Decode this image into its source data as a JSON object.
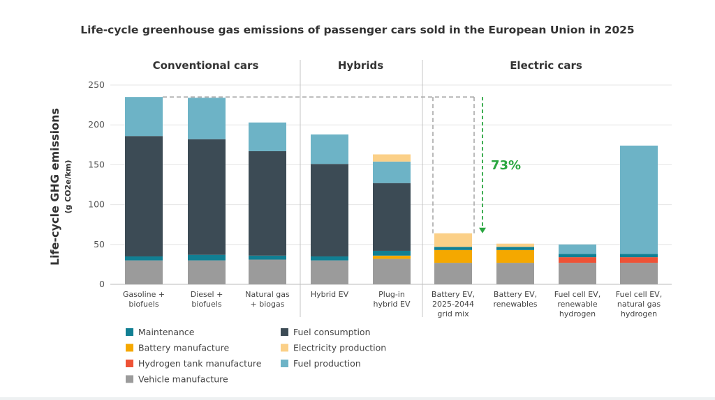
{
  "chart_data": {
    "type": "bar",
    "stacked": true,
    "title": "Life-cycle greenhouse gas emissions of passenger cars sold in the European Union in 2025",
    "ylabel": "Life-cycle GHG emissions",
    "yunit": "(g CO2e/km)",
    "ylim": [
      0,
      250
    ],
    "yticks": [
      0,
      50,
      100,
      150,
      200,
      250
    ],
    "grid": true,
    "legend_position": "bottom-left",
    "groups": [
      {
        "label": "Conventional cars",
        "categories": [
          0,
          1,
          2
        ]
      },
      {
        "label": "Hybrids",
        "categories": [
          3,
          4
        ]
      },
      {
        "label": "Electric cars",
        "categories": [
          5,
          6,
          7,
          8
        ]
      }
    ],
    "categories": [
      [
        "Gasoline +",
        "biofuels"
      ],
      [
        "Diesel +",
        "biofuels"
      ],
      [
        "Natural gas",
        "+ biogas"
      ],
      [
        "Hybrid EV"
      ],
      [
        "Plug-in",
        "hybrid EV"
      ],
      [
        "Battery EV,",
        "2025-2044",
        "grid mix"
      ],
      [
        "Battery EV,",
        "renewables"
      ],
      [
        "Fuel cell EV,",
        "renewable",
        "hydrogen"
      ],
      [
        "Fuel cell EV,",
        "natural gas",
        "hydrogen"
      ]
    ],
    "series": [
      {
        "name": "Vehicle manufacture",
        "color": "#9b9b9b",
        "values": [
          30,
          30,
          31,
          30,
          32,
          27,
          27,
          27,
          27
        ]
      },
      {
        "name": "Battery manufacture",
        "color": "#f5a800",
        "values": [
          0,
          0,
          0,
          0,
          4,
          16,
          16,
          0,
          0
        ]
      },
      {
        "name": "Hydrogen tank manufacture",
        "color": "#ee5236",
        "values": [
          0,
          0,
          0,
          0,
          0,
          0,
          0,
          7,
          7
        ]
      },
      {
        "name": "Maintenance",
        "color": "#117f93",
        "values": [
          5,
          7,
          5,
          5,
          6,
          4,
          4,
          4,
          4
        ]
      },
      {
        "name": "Fuel consumption",
        "color": "#3c4b55",
        "values": [
          151,
          145,
          131,
          116,
          85,
          0,
          0,
          0,
          0
        ]
      },
      {
        "name": "Fuel production",
        "color": "#6db3c6",
        "values": [
          49,
          52,
          36,
          37,
          27,
          0,
          0,
          12,
          136
        ]
      },
      {
        "name": "Electricity production",
        "color": "#fbd088",
        "values": [
          0,
          0,
          0,
          0,
          9,
          17,
          4,
          0,
          0
        ]
      }
    ],
    "legend_order": [
      "Maintenance",
      "Fuel consumption",
      "Battery manufacture",
      "Electricity production",
      "Hydrogen tank manufacture",
      "Fuel production",
      "Vehicle manufacture"
    ],
    "annotation": {
      "text": "73%",
      "color": "#2aa640",
      "reference_value": 235,
      "from_category": 0,
      "to_category": 5
    }
  }
}
